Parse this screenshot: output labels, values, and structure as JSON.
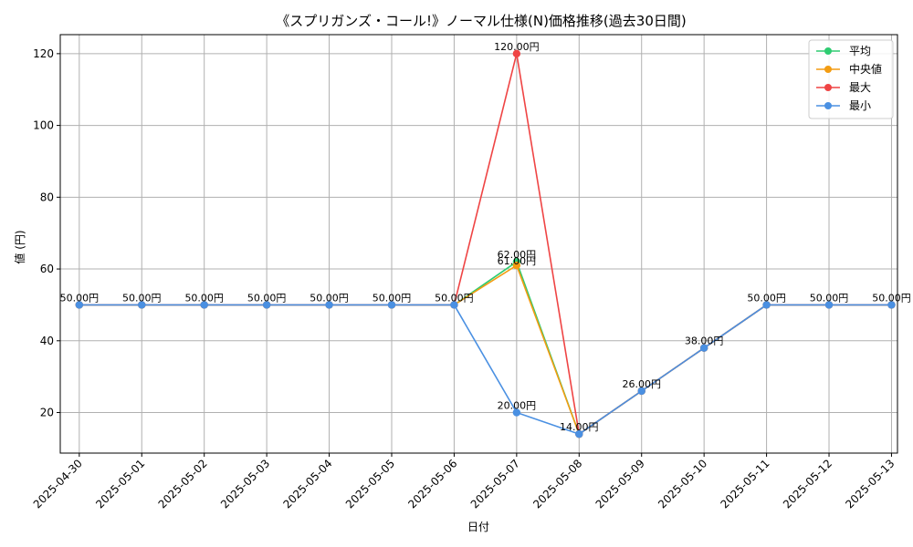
{
  "chart_data": {
    "type": "line",
    "title": "《スプリガンズ・コール!》ノーマル仕様(N)価格推移(過去30日間)",
    "xlabel": "日付",
    "ylabel": "値 (円)",
    "ylim": [
      8.7,
      125.3
    ],
    "yticks": [
      20,
      40,
      60,
      80,
      100,
      120
    ],
    "grid": true,
    "legend_position": "top-right",
    "categories": [
      "2025-04-30",
      "2025-05-01",
      "2025-05-02",
      "2025-05-03",
      "2025-05-04",
      "2025-05-05",
      "2025-05-06",
      "2025-05-07",
      "2025-05-08",
      "2025-05-09",
      "2025-05-10",
      "2025-05-11",
      "2025-05-12",
      "2025-05-13"
    ],
    "series": [
      {
        "name": "平均",
        "color": "#2ecc71",
        "values": [
          50,
          50,
          50,
          50,
          50,
          50,
          50,
          62,
          14,
          26,
          38,
          50,
          50,
          50
        ]
      },
      {
        "name": "中央値",
        "color": "#f39c12",
        "values": [
          50,
          50,
          50,
          50,
          50,
          50,
          50,
          61,
          14,
          26,
          38,
          50,
          50,
          50
        ]
      },
      {
        "name": "最大",
        "color": "#ef4444",
        "values": [
          50,
          50,
          50,
          50,
          50,
          50,
          50,
          120,
          14,
          26,
          38,
          50,
          50,
          50
        ]
      },
      {
        "name": "最小",
        "color": "#4a90e2",
        "values": [
          50,
          50,
          50,
          50,
          50,
          50,
          50,
          20,
          14,
          26,
          38,
          50,
          50,
          50
        ]
      }
    ],
    "data_labels": [
      {
        "x": "2025-04-30",
        "text": "50.00円"
      },
      {
        "x": "2025-05-01",
        "text": "50.00円"
      },
      {
        "x": "2025-05-02",
        "text": "50.00円"
      },
      {
        "x": "2025-05-03",
        "text": "50.00円"
      },
      {
        "x": "2025-05-04",
        "text": "50.00円"
      },
      {
        "x": "2025-05-05",
        "text": "50.00円"
      },
      {
        "x": "2025-05-06",
        "text": "50.00円"
      },
      {
        "x": "2025-05-07",
        "text": "62.00円"
      },
      {
        "x": "2025-05-07",
        "text": "61.00円"
      },
      {
        "x": "2025-05-07",
        "text": "120.00円"
      },
      {
        "x": "2025-05-07",
        "text": "20.00円"
      },
      {
        "x": "2025-05-08",
        "text": "14.00円"
      },
      {
        "x": "2025-05-09",
        "text": "26.00円"
      },
      {
        "x": "2025-05-10",
        "text": "38.00円"
      },
      {
        "x": "2025-05-11",
        "text": "50.00円"
      },
      {
        "x": "2025-05-12",
        "text": "50.00円"
      },
      {
        "x": "2025-05-13",
        "text": "50.00円"
      }
    ]
  }
}
